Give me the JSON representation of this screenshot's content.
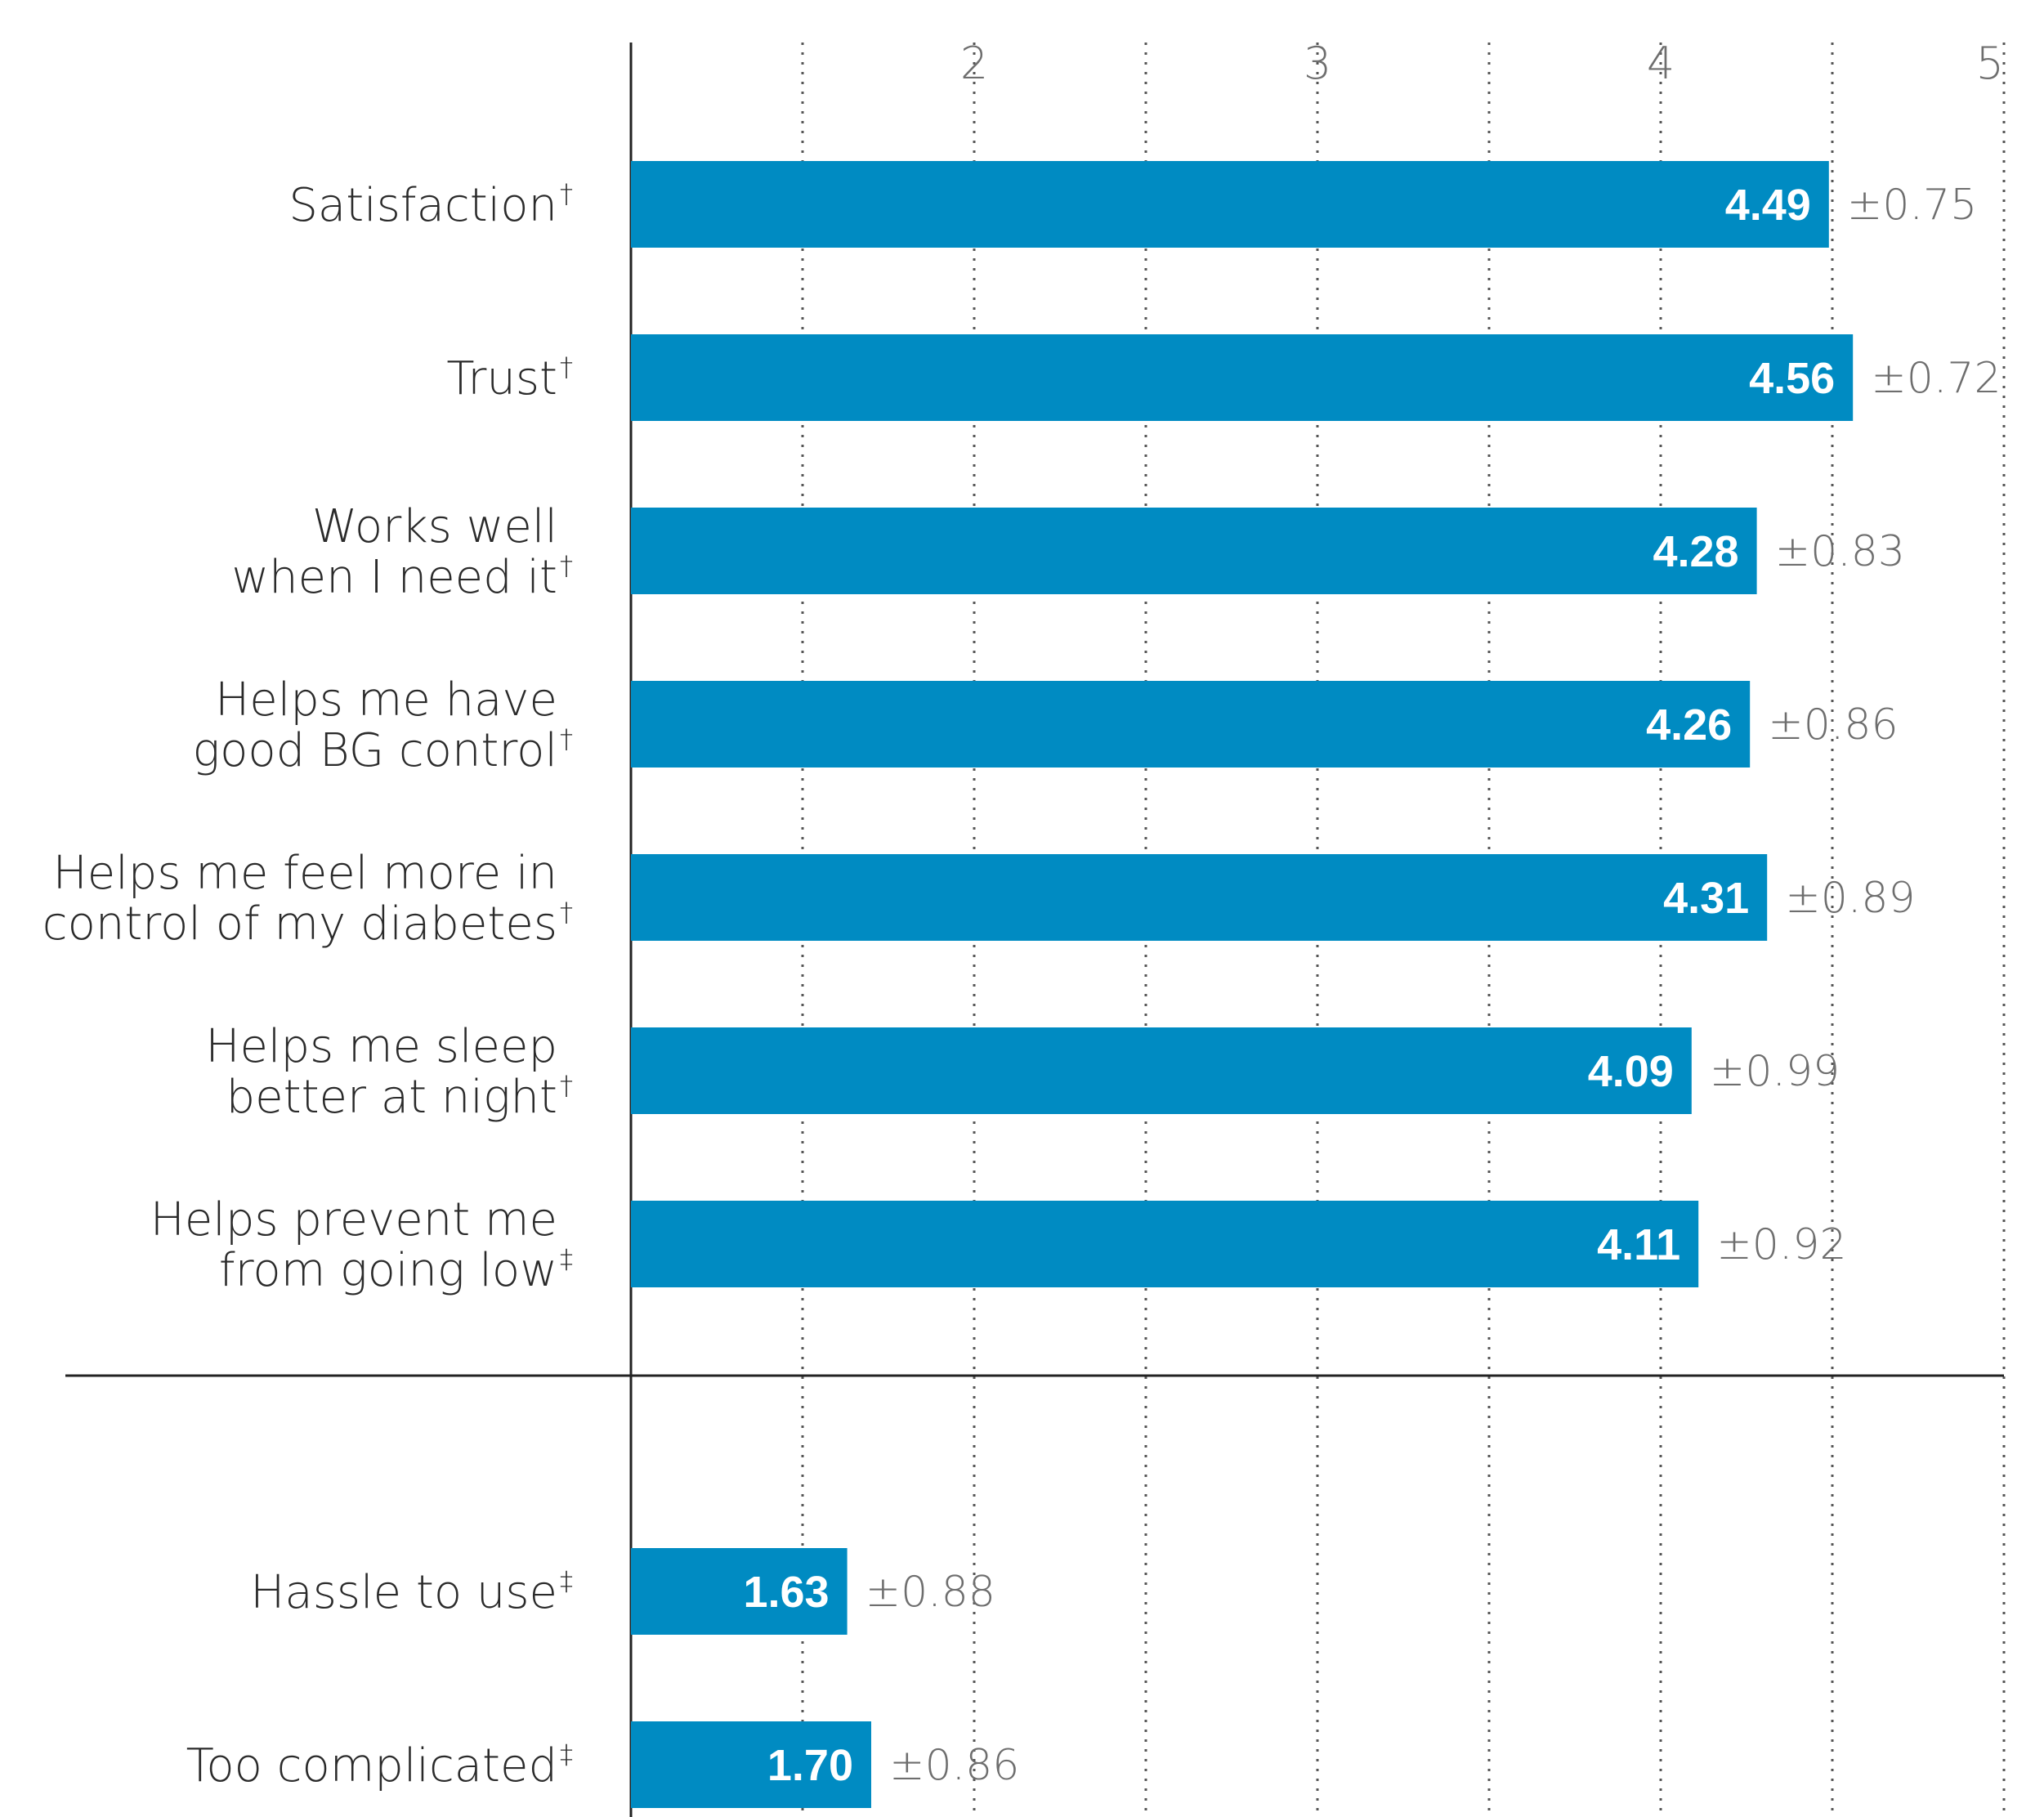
{
  "chart_data": {
    "type": "bar",
    "orientation": "horizontal",
    "xlim": [
      1,
      5
    ],
    "x_ticks": [
      "2",
      "3",
      "4",
      "5"
    ],
    "grid": true,
    "bar_color": "#008bc2",
    "groups": [
      {
        "items": [
          {
            "label_lines": [
              "Satisfaction"
            ],
            "mark": "†",
            "value": 4.49,
            "value_text": "4.49",
            "error_text": "±0.75"
          },
          {
            "label_lines": [
              "Trust"
            ],
            "mark": "†",
            "value": 4.56,
            "value_text": "4.56",
            "error_text": "±0.72"
          },
          {
            "label_lines": [
              "Works well",
              "when I need it"
            ],
            "mark": "†",
            "value": 4.28,
            "value_text": "4.28",
            "error_text": "±0.83"
          },
          {
            "label_lines": [
              "Helps me have",
              "good BG control"
            ],
            "mark": "†",
            "value": 4.26,
            "value_text": "4.26",
            "error_text": "±0.86"
          },
          {
            "label_lines": [
              "Helps me feel more in",
              "control of my diabetes"
            ],
            "mark": "†",
            "value": 4.31,
            "value_text": "4.31",
            "error_text": "±0.89"
          },
          {
            "label_lines": [
              "Helps me sleep",
              "better at night"
            ],
            "mark": "†",
            "value": 4.09,
            "value_text": "4.09",
            "error_text": "±0.99"
          },
          {
            "label_lines": [
              "Helps prevent me",
              "from going low"
            ],
            "mark": "‡",
            "value": 4.11,
            "value_text": "4.11",
            "error_text": "±0.92"
          }
        ]
      },
      {
        "items": [
          {
            "label_lines": [
              "Hassle to use"
            ],
            "mark": "‡",
            "value": 1.63,
            "value_text": "1.63",
            "error_text": "±0.88"
          },
          {
            "label_lines": [
              "Too complicated"
            ],
            "mark": "‡",
            "value": 1.7,
            "value_text": "1.70",
            "error_text": "±0.86"
          }
        ]
      }
    ]
  }
}
